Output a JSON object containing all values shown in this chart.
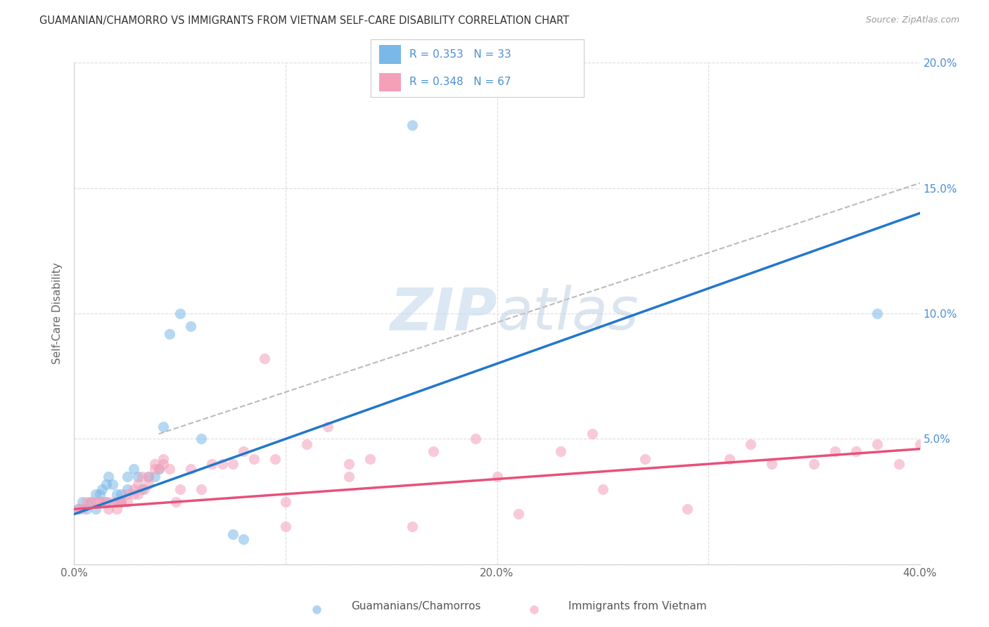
{
  "title": "GUAMANIAN/CHAMORRO VS IMMIGRANTS FROM VIETNAM SELF-CARE DISABILITY CORRELATION CHART",
  "source": "Source: ZipAtlas.com",
  "ylabel": "Self-Care Disability",
  "xlim": [
    0.0,
    0.4
  ],
  "ylim": [
    0.0,
    0.2
  ],
  "xticks": [
    0.0,
    0.1,
    0.2,
    0.3,
    0.4
  ],
  "yticks": [
    0.0,
    0.05,
    0.1,
    0.15,
    0.2
  ],
  "xticklabels": [
    "0.0%",
    "",
    "20.0%",
    "",
    "40.0%"
  ],
  "right_yticklabels": [
    "",
    "5.0%",
    "10.0%",
    "15.0%",
    "20.0%"
  ],
  "legend_R1": "R = 0.353",
  "legend_N1": "N = 33",
  "legend_R2": "R = 0.348",
  "legend_N2": "N = 67",
  "color_blue": "#7ab8e8",
  "color_pink": "#f4a0b8",
  "color_blue_text": "#4a90d9",
  "watermark": "ZIPatlas",
  "label1": "Guamanians/Chamorros",
  "label2": "Immigrants from Vietnam",
  "blue_scatter_x": [
    0.002,
    0.004,
    0.006,
    0.008,
    0.01,
    0.01,
    0.012,
    0.013,
    0.015,
    0.015,
    0.016,
    0.018,
    0.02,
    0.02,
    0.022,
    0.022,
    0.025,
    0.025,
    0.028,
    0.03,
    0.032,
    0.035,
    0.038,
    0.04,
    0.042,
    0.045,
    0.05,
    0.055,
    0.06,
    0.075,
    0.08,
    0.16,
    0.38
  ],
  "blue_scatter_y": [
    0.022,
    0.025,
    0.022,
    0.025,
    0.022,
    0.028,
    0.028,
    0.03,
    0.025,
    0.032,
    0.035,
    0.032,
    0.025,
    0.028,
    0.025,
    0.028,
    0.03,
    0.035,
    0.038,
    0.035,
    0.03,
    0.035,
    0.035,
    0.038,
    0.055,
    0.092,
    0.1,
    0.095,
    0.05,
    0.012,
    0.01,
    0.175,
    0.1
  ],
  "pink_scatter_x": [
    0.002,
    0.004,
    0.006,
    0.008,
    0.01,
    0.012,
    0.013,
    0.015,
    0.016,
    0.018,
    0.02,
    0.02,
    0.022,
    0.022,
    0.025,
    0.025,
    0.028,
    0.028,
    0.03,
    0.03,
    0.032,
    0.033,
    0.035,
    0.035,
    0.038,
    0.038,
    0.04,
    0.042,
    0.042,
    0.045,
    0.048,
    0.05,
    0.055,
    0.06,
    0.065,
    0.07,
    0.075,
    0.08,
    0.085,
    0.09,
    0.095,
    0.1,
    0.11,
    0.12,
    0.13,
    0.14,
    0.16,
    0.17,
    0.19,
    0.2,
    0.21,
    0.23,
    0.25,
    0.27,
    0.29,
    0.31,
    0.32,
    0.33,
    0.35,
    0.36,
    0.37,
    0.38,
    0.39,
    0.4,
    0.245,
    0.13,
    0.1
  ],
  "pink_scatter_y": [
    0.022,
    0.022,
    0.025,
    0.025,
    0.025,
    0.025,
    0.025,
    0.025,
    0.022,
    0.025,
    0.022,
    0.025,
    0.025,
    0.025,
    0.025,
    0.028,
    0.028,
    0.03,
    0.028,
    0.032,
    0.035,
    0.03,
    0.032,
    0.035,
    0.038,
    0.04,
    0.038,
    0.04,
    0.042,
    0.038,
    0.025,
    0.03,
    0.038,
    0.03,
    0.04,
    0.04,
    0.04,
    0.045,
    0.042,
    0.082,
    0.042,
    0.025,
    0.048,
    0.055,
    0.04,
    0.042,
    0.015,
    0.045,
    0.05,
    0.035,
    0.02,
    0.045,
    0.03,
    0.042,
    0.022,
    0.042,
    0.048,
    0.04,
    0.04,
    0.045,
    0.045,
    0.048,
    0.04,
    0.048,
    0.052,
    0.035,
    0.015
  ],
  "blue_line_x": [
    0.0,
    0.4
  ],
  "blue_line_y": [
    0.02,
    0.14
  ],
  "pink_line_x": [
    0.0,
    0.4
  ],
  "pink_line_y": [
    0.022,
    0.046
  ],
  "dashed_line_x": [
    0.04,
    0.4
  ],
  "dashed_line_y": [
    0.052,
    0.152
  ],
  "background_color": "#ffffff",
  "grid_color": "#dddddd"
}
